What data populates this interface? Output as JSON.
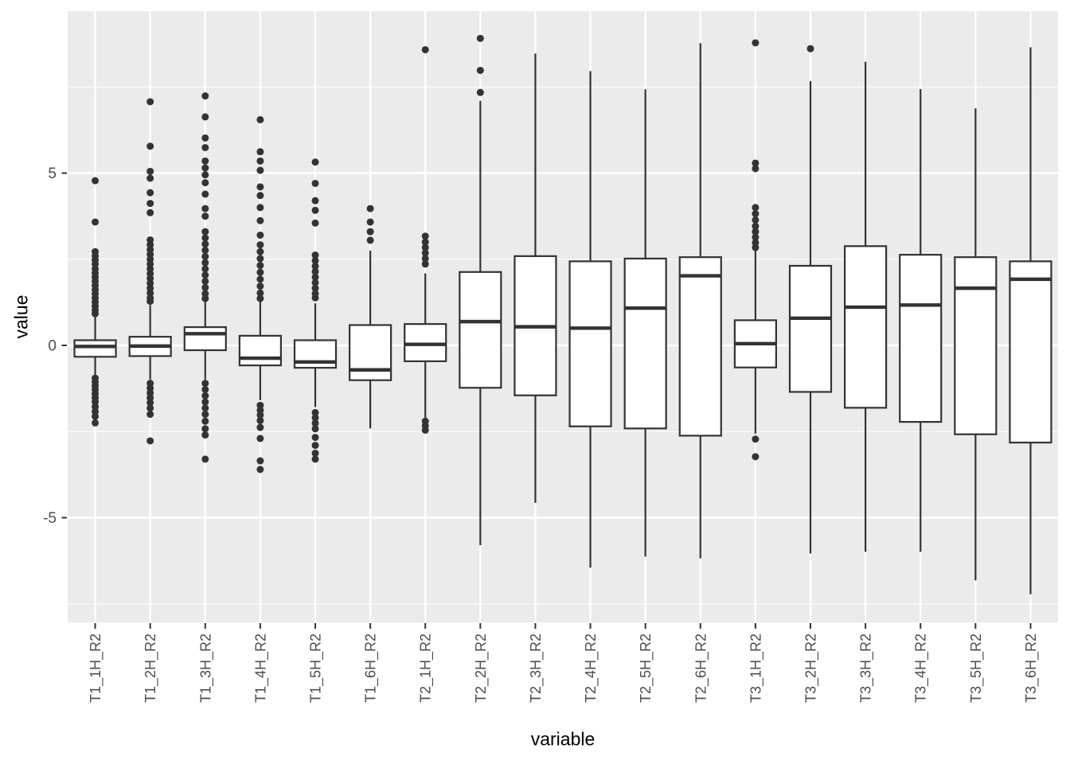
{
  "chart_data": {
    "type": "boxplot",
    "title": "",
    "xlabel": "variable",
    "ylabel": "value",
    "y_ticks": [
      5,
      0,
      -5
    ],
    "y_minor_gridlines": [
      7.5,
      2.5,
      -2.5,
      -7.5
    ],
    "ylim": [
      -8.04,
      9.7
    ],
    "grid": "on",
    "panel_bg": "#EBEBEB",
    "gridline_color": "#FFFFFF",
    "box_fill": "#FFFFFF",
    "stroke_color": "#333333",
    "tick_text_color": "#4D4D4D",
    "categories": [
      "T1_1H_R2",
      "T1_2H_R2",
      "T1_3H_R2",
      "T1_4H_R2",
      "T1_5H_R2",
      "T1_6H_R2",
      "T2_1H_R2",
      "T2_2H_R2",
      "T2_3H_R2",
      "T2_4H_R2",
      "T2_5H_R2",
      "T2_6H_R2",
      "T3_1H_R2",
      "T3_2H_R2",
      "T3_3H_R2",
      "T3_4H_R2",
      "T3_5H_R2",
      "T3_6H_R2"
    ],
    "boxes": [
      {
        "label": "T1_1H_R2",
        "whisker_low": -0.87,
        "q1": -0.33,
        "median": -0.03,
        "q3": 0.15,
        "whisker_high": 0.82,
        "outliers_high": [
          4.78,
          3.58,
          2.72,
          2.6,
          2.48,
          2.36,
          2.22,
          2.1,
          1.98,
          1.86,
          1.74,
          1.62,
          1.5,
          1.38,
          1.26,
          1.14,
          1.02,
          0.92
        ],
        "outliers_low": [
          -0.95,
          -1.06,
          -1.17,
          -1.28,
          -1.4,
          -1.52,
          -1.64,
          -1.78,
          -1.92,
          -2.06,
          -2.25
        ]
      },
      {
        "label": "T1_2H_R2",
        "whisker_low": -0.99,
        "q1": -0.31,
        "median": -0.02,
        "q3": 0.25,
        "whisker_high": 1.17,
        "outliers_high": [
          7.07,
          5.78,
          5.05,
          4.85,
          4.43,
          4.12,
          3.85,
          3.06,
          2.92,
          2.78,
          2.64,
          2.5,
          2.36,
          2.22,
          2.08,
          1.94,
          1.8,
          1.66,
          1.52,
          1.38,
          1.28
        ],
        "outliers_low": [
          -1.1,
          -1.24,
          -1.38,
          -1.52,
          -1.66,
          -1.82,
          -2.0,
          -2.77
        ]
      },
      {
        "label": "T1_3H_R2",
        "whisker_low": -0.99,
        "q1": -0.14,
        "median": 0.34,
        "q3": 0.53,
        "whisker_high": 1.32,
        "outliers_high": [
          7.24,
          6.63,
          6.02,
          5.74,
          5.35,
          5.15,
          4.95,
          4.72,
          4.39,
          3.97,
          3.75,
          3.3,
          3.12,
          2.94,
          2.76,
          2.58,
          2.4,
          2.22,
          2.04,
          1.86,
          1.68,
          1.5,
          1.36
        ],
        "outliers_low": [
          -1.1,
          -1.28,
          -1.46,
          -1.64,
          -1.82,
          -2.0,
          -2.2,
          -2.42,
          -2.6,
          -3.3
        ]
      },
      {
        "label": "T1_4H_R2",
        "whisker_low": -1.59,
        "q1": -0.58,
        "median": -0.37,
        "q3": 0.28,
        "whisker_high": 1.32,
        "outliers_high": [
          6.55,
          5.62,
          5.35,
          5.08,
          4.6,
          4.35,
          4.0,
          3.62,
          3.2,
          2.92,
          2.72,
          2.52,
          2.32,
          2.12,
          1.92,
          1.72,
          1.52,
          1.36
        ],
        "outliers_low": [
          -1.74,
          -1.88,
          -2.02,
          -2.18,
          -2.38,
          -2.7,
          -3.35,
          -3.6
        ]
      },
      {
        "label": "T1_5H_R2",
        "whisker_low": -1.79,
        "q1": -0.65,
        "median": -0.48,
        "q3": 0.15,
        "whisker_high": 1.22,
        "outliers_high": [
          5.32,
          4.7,
          4.2,
          3.92,
          3.55,
          2.62,
          2.46,
          2.3,
          2.14,
          1.98,
          1.82,
          1.66,
          1.5,
          1.38
        ],
        "outliers_low": [
          -1.95,
          -2.1,
          -2.26,
          -2.42,
          -2.67,
          -2.9,
          -3.13,
          -3.3
        ]
      },
      {
        "label": "T1_6H_R2",
        "whisker_low": -2.41,
        "q1": -1.01,
        "median": -0.71,
        "q3": 0.59,
        "whisker_high": 2.75,
        "outliers_high": [
          3.97,
          3.58,
          3.3,
          3.05
        ],
        "outliers_low": []
      },
      {
        "label": "T2_1H_R2",
        "whisker_low": -2.1,
        "q1": -0.46,
        "median": 0.03,
        "q3": 0.62,
        "whisker_high": 2.09,
        "outliers_high": [
          8.58,
          3.17,
          3.0,
          2.84,
          2.68,
          2.52,
          2.36
        ],
        "outliers_low": [
          -2.2,
          -2.33,
          -2.46
        ]
      },
      {
        "label": "T2_2H_R2",
        "whisker_low": -5.8,
        "q1": -1.23,
        "median": 0.69,
        "q3": 2.13,
        "whisker_high": 7.1,
        "outliers_high": [
          8.91,
          7.98,
          7.34
        ],
        "outliers_low": []
      },
      {
        "label": "T2_3H_R2",
        "whisker_low": -4.57,
        "q1": -1.45,
        "median": 0.54,
        "q3": 2.59,
        "whisker_high": 8.47,
        "outliers_high": [],
        "outliers_low": []
      },
      {
        "label": "T2_4H_R2",
        "whisker_low": -6.45,
        "q1": -2.35,
        "median": 0.5,
        "q3": 2.44,
        "whisker_high": 7.96,
        "outliers_high": [],
        "outliers_low": []
      },
      {
        "label": "T2_5H_R2",
        "whisker_low": -6.13,
        "q1": -2.41,
        "median": 1.08,
        "q3": 2.52,
        "whisker_high": 7.43,
        "outliers_high": [],
        "outliers_low": []
      },
      {
        "label": "T2_6H_R2",
        "whisker_low": -6.18,
        "q1": -2.62,
        "median": 2.02,
        "q3": 2.56,
        "whisker_high": 8.77,
        "outliers_high": [],
        "outliers_low": []
      },
      {
        "label": "T3_1H_R2",
        "whisker_low": -2.56,
        "q1": -0.64,
        "median": 0.05,
        "q3": 0.73,
        "whisker_high": 2.75,
        "outliers_high": [
          8.78,
          5.29,
          5.13,
          4.0,
          3.82,
          3.64,
          3.46,
          3.3,
          3.14,
          2.98,
          2.84
        ],
        "outliers_low": [
          -2.72,
          -3.23
        ]
      },
      {
        "label": "T3_2H_R2",
        "whisker_low": -6.04,
        "q1": -1.35,
        "median": 0.79,
        "q3": 2.31,
        "whisker_high": 7.67,
        "outliers_high": [
          8.61
        ],
        "outliers_low": []
      },
      {
        "label": "T3_3H_R2",
        "whisker_low": -5.99,
        "q1": -1.81,
        "median": 1.11,
        "q3": 2.88,
        "whisker_high": 8.23,
        "outliers_high": [],
        "outliers_low": []
      },
      {
        "label": "T3_4H_R2",
        "whisker_low": -5.99,
        "q1": -2.22,
        "median": 1.17,
        "q3": 2.63,
        "whisker_high": 7.44,
        "outliers_high": [],
        "outliers_low": []
      },
      {
        "label": "T3_5H_R2",
        "whisker_low": -6.82,
        "q1": -2.58,
        "median": 1.66,
        "q3": 2.56,
        "whisker_high": 6.88,
        "outliers_high": [],
        "outliers_low": []
      },
      {
        "label": "T3_6H_R2",
        "whisker_low": -7.22,
        "q1": -2.82,
        "median": 1.92,
        "q3": 2.44,
        "whisker_high": 8.65,
        "outliers_high": [],
        "outliers_low": []
      }
    ]
  }
}
